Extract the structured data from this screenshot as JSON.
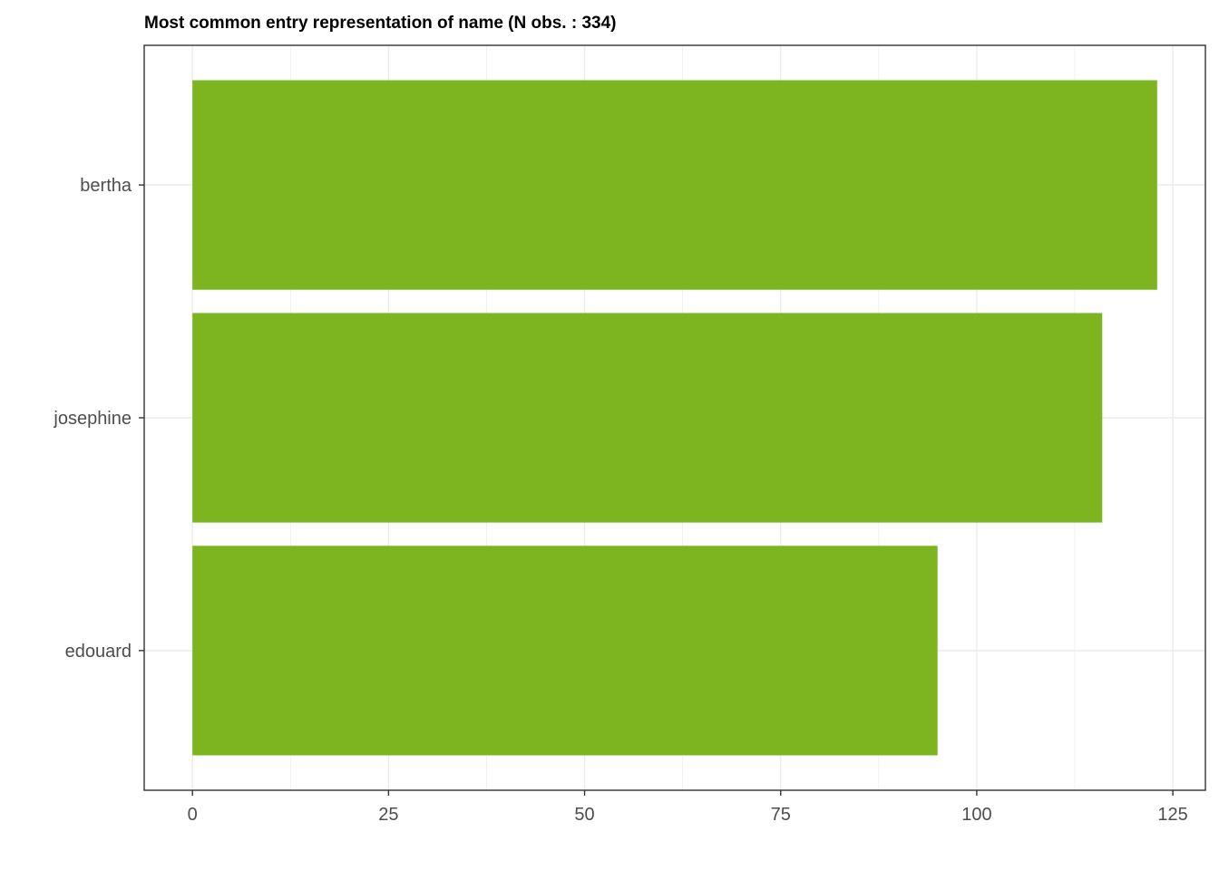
{
  "chart_data": {
    "type": "bar",
    "orientation": "horizontal",
    "title": "Most common entry representation of name (N obs. : 334)",
    "xlabel": "",
    "ylabel": "",
    "categories": [
      "bertha",
      "josephine",
      "edouard"
    ],
    "values": [
      123,
      116,
      95
    ],
    "x_ticks": [
      0,
      25,
      50,
      75,
      100,
      125
    ],
    "xlim": [
      -6.15,
      129.15
    ],
    "bar_color": "#7cb51f",
    "grid": true,
    "legend": "none"
  }
}
